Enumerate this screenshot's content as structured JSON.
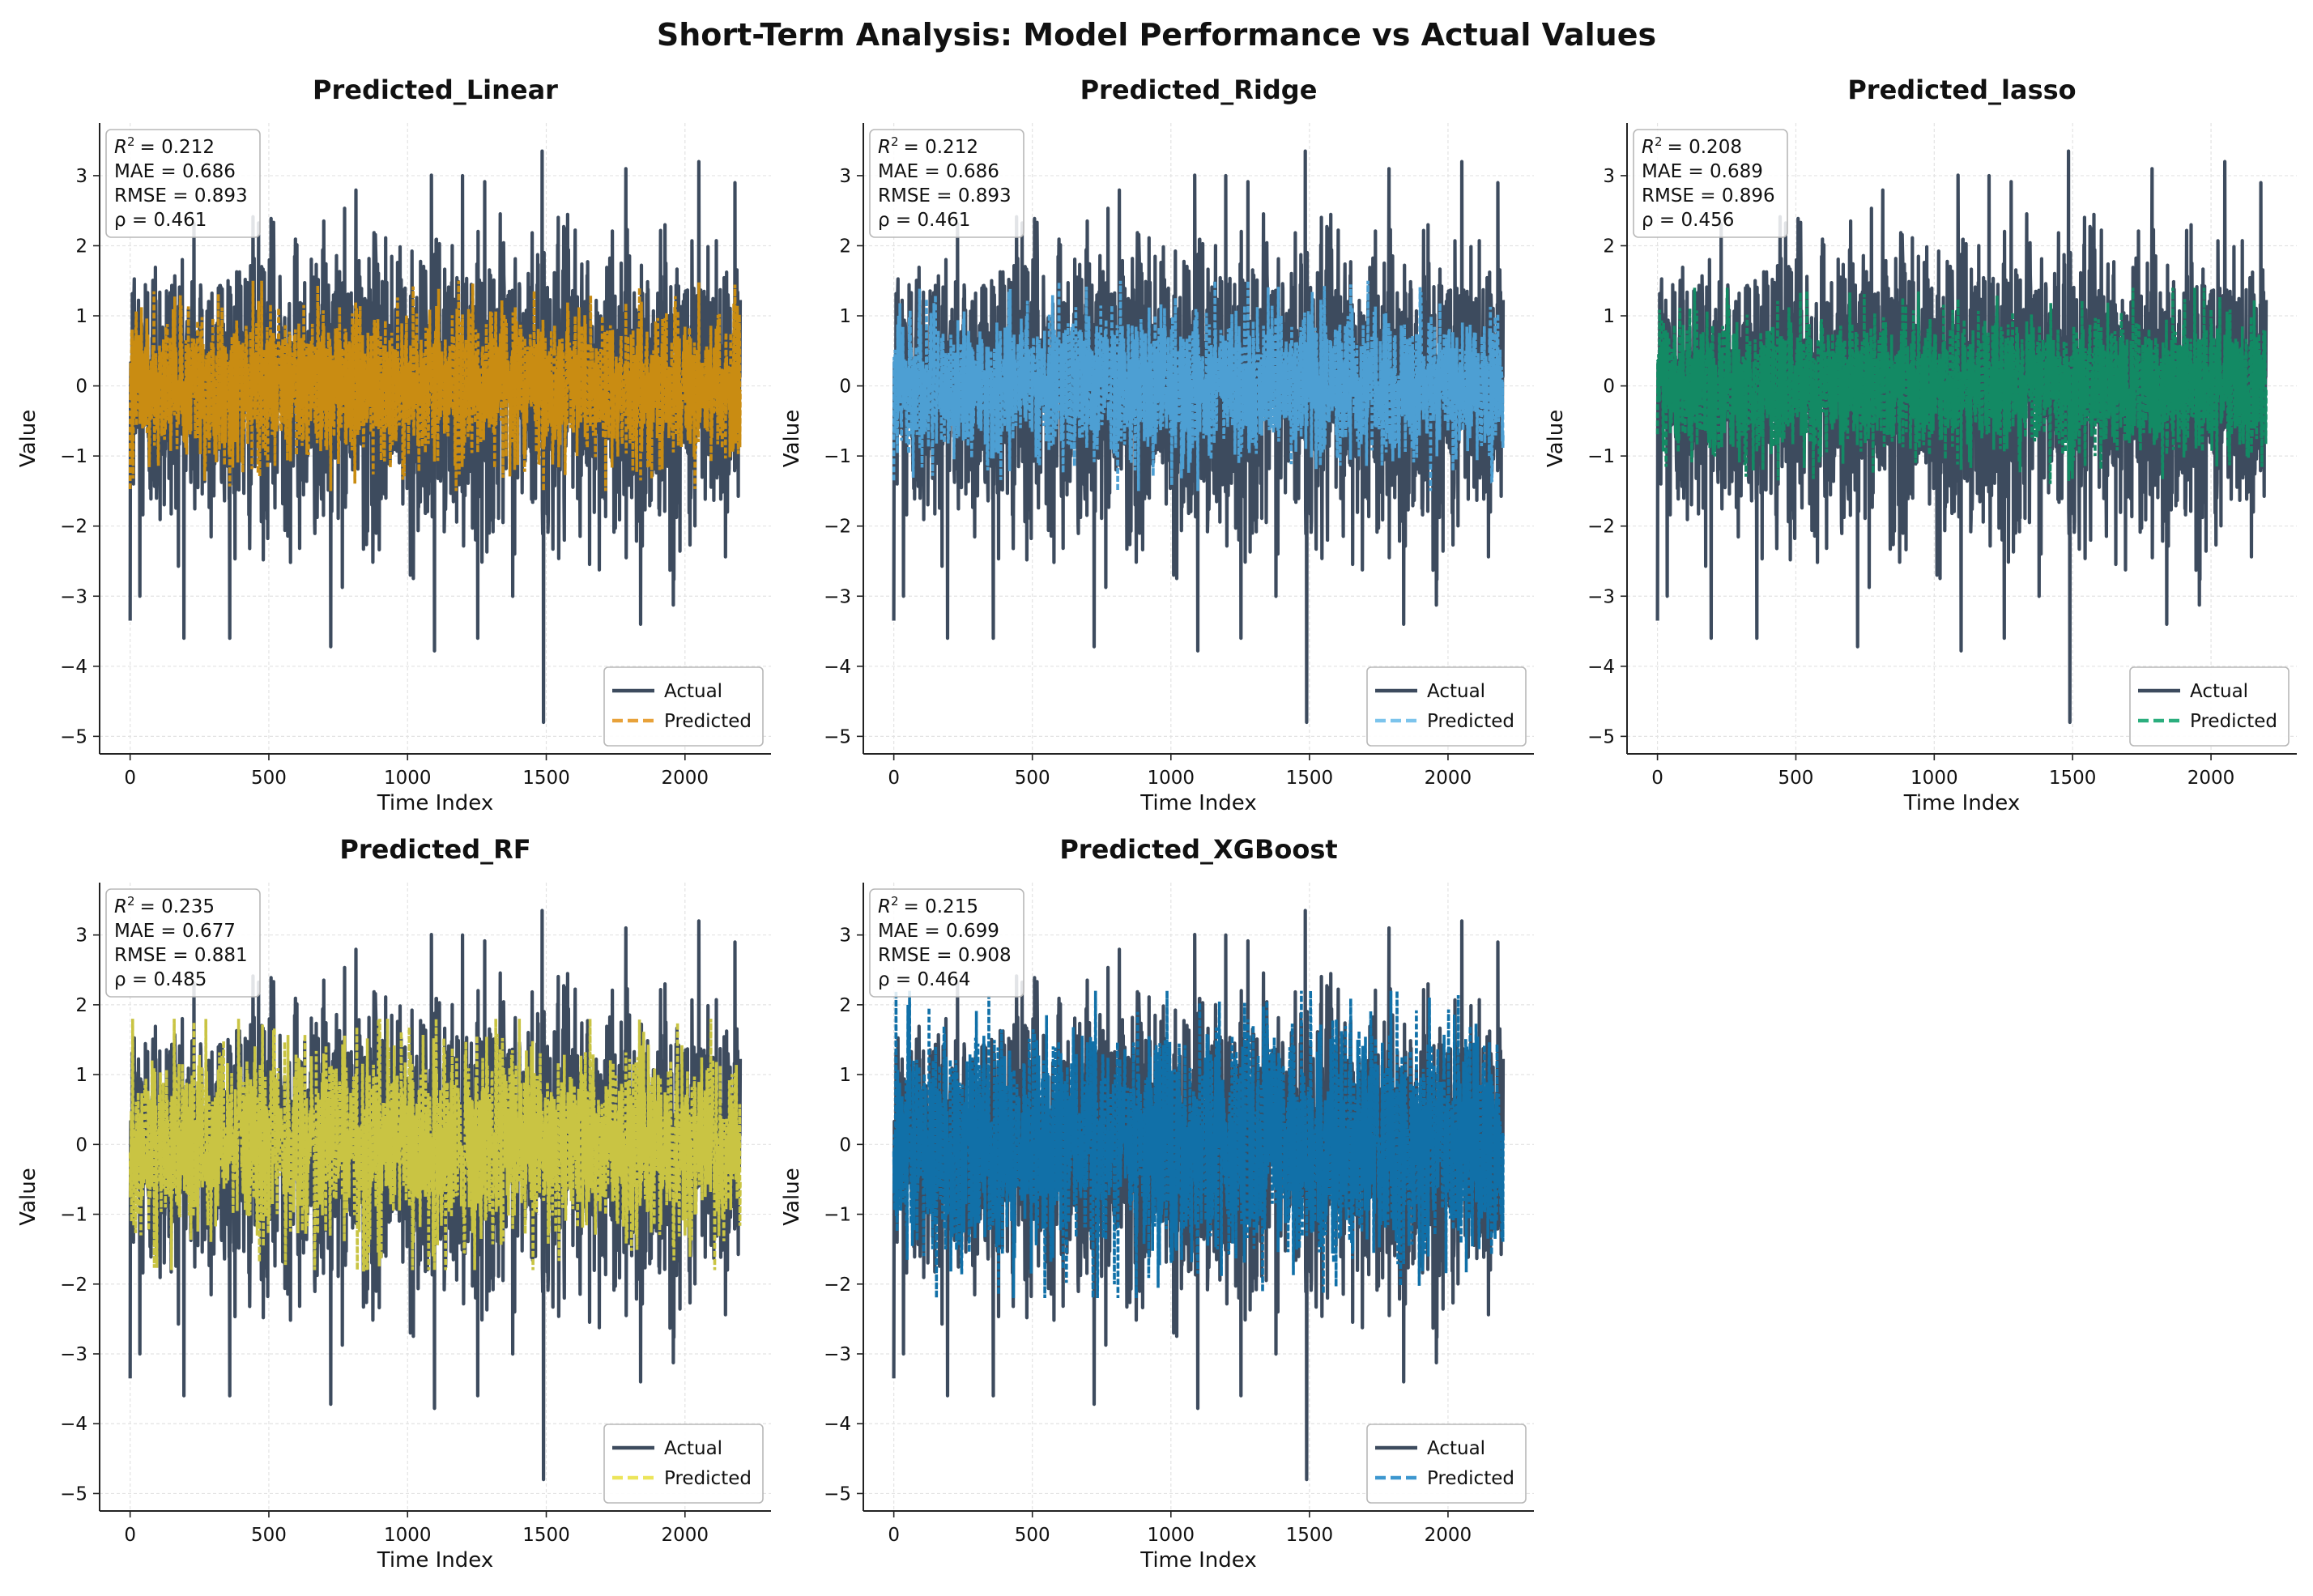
{
  "figure": {
    "title": "Short-Term Analysis: Model Performance vs Actual Values"
  },
  "colors": {
    "actual": "#3d4b5e",
    "axis": "#222222",
    "grid": "#e3e3e3",
    "text": "#111111"
  },
  "chart_data": [
    {
      "type": "line",
      "title": "Predicted_Linear",
      "xlabel": "Time Index",
      "ylabel": "Value",
      "xlim": [
        -110,
        2310
      ],
      "ylim": [
        -5.25,
        3.75
      ],
      "xticks": [
        0,
        500,
        1000,
        1500,
        2000
      ],
      "yticks": [
        -5,
        -4,
        -3,
        -2,
        -1,
        0,
        1,
        2,
        3
      ],
      "grid": true,
      "legend": {
        "position": "lower-right",
        "entries": [
          "Actual",
          "Predicted"
        ]
      },
      "metrics": {
        "r2_prefix": "R",
        "r2": "= 0.212",
        "mae": "MAE = 0.686",
        "rmse": "RMSE = 0.893",
        "rho": "ρ = 0.461"
      },
      "series": [
        {
          "name": "Actual",
          "style": "solid",
          "color": "#3d4b5e",
          "n_points": 2200,
          "range": [
            -4.8,
            3.35
          ]
        },
        {
          "name": "Predicted",
          "style": "dashed",
          "color": "#c98c12",
          "legend_color": "#e8a23a",
          "n_points": 2200,
          "range": [
            -1.5,
            1.5
          ]
        }
      ]
    },
    {
      "type": "line",
      "title": "Predicted_Ridge",
      "xlabel": "Time Index",
      "ylabel": "Value",
      "xlim": [
        -110,
        2310
      ],
      "ylim": [
        -5.25,
        3.75
      ],
      "xticks": [
        0,
        500,
        1000,
        1500,
        2000
      ],
      "yticks": [
        -5,
        -4,
        -3,
        -2,
        -1,
        0,
        1,
        2,
        3
      ],
      "grid": true,
      "legend": {
        "position": "lower-right",
        "entries": [
          "Actual",
          "Predicted"
        ]
      },
      "metrics": {
        "r2_prefix": "R",
        "r2": "= 0.212",
        "mae": "MAE = 0.686",
        "rmse": "RMSE = 0.893",
        "rho": "ρ = 0.461"
      },
      "series": [
        {
          "name": "Actual",
          "style": "solid",
          "color": "#3d4b5e",
          "n_points": 2200,
          "range": [
            -4.8,
            3.35
          ]
        },
        {
          "name": "Predicted",
          "style": "dashed",
          "color": "#4d9fd3",
          "legend_color": "#7cc4ec",
          "n_points": 2200,
          "range": [
            -1.5,
            1.5
          ]
        }
      ]
    },
    {
      "type": "line",
      "title": "Predicted_lasso",
      "xlabel": "Time Index",
      "ylabel": "Value",
      "xlim": [
        -110,
        2310
      ],
      "ylim": [
        -5.25,
        3.75
      ],
      "xticks": [
        0,
        500,
        1000,
        1500,
        2000
      ],
      "yticks": [
        -5,
        -4,
        -3,
        -2,
        -1,
        0,
        1,
        2,
        3
      ],
      "grid": true,
      "legend": {
        "position": "lower-right",
        "entries": [
          "Actual",
          "Predicted"
        ]
      },
      "metrics": {
        "r2_prefix": "R",
        "r2": "= 0.208",
        "mae": "MAE = 0.689",
        "rmse": "RMSE = 0.896",
        "rho": "ρ = 0.456"
      },
      "series": [
        {
          "name": "Actual",
          "style": "solid",
          "color": "#3d4b5e",
          "n_points": 2200,
          "range": [
            -4.8,
            3.35
          ]
        },
        {
          "name": "Predicted",
          "style": "dashed",
          "color": "#138a64",
          "legend_color": "#2bae7e",
          "n_points": 2200,
          "range": [
            -1.4,
            1.4
          ]
        }
      ]
    },
    {
      "type": "line",
      "title": "Predicted_RF",
      "xlabel": "Time Index",
      "ylabel": "Value",
      "xlim": [
        -110,
        2310
      ],
      "ylim": [
        -5.25,
        3.75
      ],
      "xticks": [
        0,
        500,
        1000,
        1500,
        2000
      ],
      "yticks": [
        -5,
        -4,
        -3,
        -2,
        -1,
        0,
        1,
        2,
        3
      ],
      "grid": true,
      "legend": {
        "position": "lower-right",
        "entries": [
          "Actual",
          "Predicted"
        ]
      },
      "metrics": {
        "r2_prefix": "R",
        "r2": "= 0.235",
        "mae": "MAE = 0.677",
        "rmse": "RMSE = 0.881",
        "rho": "ρ = 0.485"
      },
      "series": [
        {
          "name": "Actual",
          "style": "solid",
          "color": "#3d4b5e",
          "n_points": 2200,
          "range": [
            -4.8,
            3.35
          ]
        },
        {
          "name": "Predicted",
          "style": "dashed",
          "color": "#c9c443",
          "legend_color": "#ece55a",
          "n_points": 2200,
          "range": [
            -1.8,
            1.8
          ]
        }
      ]
    },
    {
      "type": "line",
      "title": "Predicted_XGBoost",
      "xlabel": "Time Index",
      "ylabel": "Value",
      "xlim": [
        -110,
        2310
      ],
      "ylim": [
        -5.25,
        3.75
      ],
      "xticks": [
        0,
        500,
        1000,
        1500,
        2000
      ],
      "yticks": [
        -5,
        -4,
        -3,
        -2,
        -1,
        0,
        1,
        2,
        3
      ],
      "grid": true,
      "legend": {
        "position": "lower-right",
        "entries": [
          "Actual",
          "Predicted"
        ]
      },
      "metrics": {
        "r2_prefix": "R",
        "r2": "= 0.215",
        "mae": "MAE = 0.699",
        "rmse": "RMSE = 0.908",
        "rho": "ρ = 0.464"
      },
      "series": [
        {
          "name": "Actual",
          "style": "solid",
          "color": "#3d4b5e",
          "n_points": 2200,
          "range": [
            -4.8,
            3.35
          ]
        },
        {
          "name": "Predicted",
          "style": "dashed",
          "color": "#1170a8",
          "legend_color": "#3d97cf",
          "n_points": 2200,
          "range": [
            -2.2,
            2.2
          ]
        }
      ]
    }
  ]
}
